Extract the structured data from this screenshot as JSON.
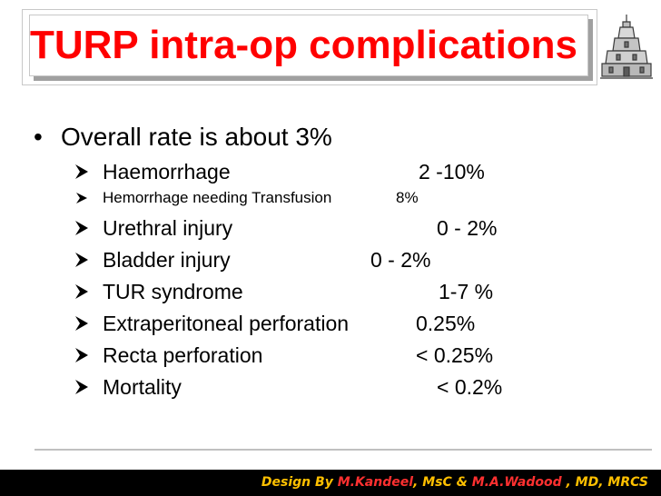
{
  "slide": {
    "title": "TURP intra-op complications",
    "bullet": "Overall rate is about 3%",
    "items": [
      {
        "label": "Haemorrhage",
        "value": "2 -10%",
        "size": "normal"
      },
      {
        "label": "Hemorrhage needing Transfusion",
        "value": "8%",
        "size": "small"
      },
      {
        "label": "Urethral injury",
        "value": "0 - 2%",
        "size": "normal"
      },
      {
        "label": "Bladder injury",
        "value": "0 - 2%",
        "size": "normal"
      },
      {
        "label": "TUR syndrome",
        "value": "1-7 %",
        "size": "normal"
      },
      {
        "label": "Extraperitoneal perforation",
        "value": "0.25%",
        "size": "normal"
      },
      {
        "label": "Recta perforation",
        "value": "< 0.25%",
        "size": "normal"
      },
      {
        "label": "Mortality",
        "value": "< 0.2%",
        "size": "normal"
      }
    ]
  },
  "footer": {
    "prefix": "Design By ",
    "author1": "M.Kandeel",
    "author1_degree": ", MsC & ",
    "author2": "M.A.Wadood",
    "author2_degree": " , MD, MRCS"
  },
  "colors": {
    "title": "#ff0000",
    "footer_text": "#ffc000",
    "footer_name": "#ff3030",
    "footer_bg": "#000000"
  },
  "icons": {
    "logo": "university-building-logo-icon",
    "bullet": "arrowhead-bullet-icon"
  }
}
